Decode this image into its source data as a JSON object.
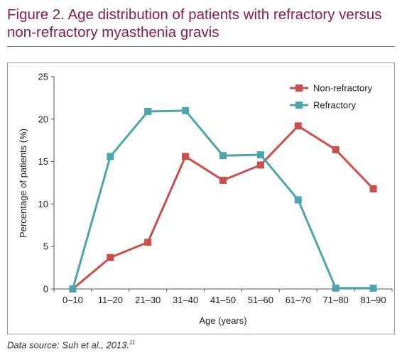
{
  "figure": {
    "title_line1": "Figure 2. Age distribution of patients with refractory versus",
    "title_line2": "non-refractory myasthenia gravis",
    "source_text": "Data source: Suh et al., 2013.",
    "source_ref": "11"
  },
  "chart_data": {
    "type": "line",
    "xlabel": "Age (years)",
    "ylabel": "Percentage of patients (%)",
    "categories": [
      "0–10",
      "11–20",
      "21–30",
      "31–40",
      "41–50",
      "51–60",
      "61–70",
      "71–80",
      "81–90"
    ],
    "ylim": [
      0,
      25
    ],
    "yticks": [
      0,
      5,
      10,
      15,
      20,
      25
    ],
    "grid": false,
    "legend_position": "top-right",
    "series": [
      {
        "name": "Non-refractory",
        "color": "#cc4e4a",
        "marker": "square",
        "values": [
          0,
          3.7,
          5.5,
          15.6,
          12.8,
          14.6,
          19.2,
          16.4,
          11.8
        ]
      },
      {
        "name": "Refractory",
        "color": "#4aa5ad",
        "marker": "square",
        "values": [
          0,
          15.6,
          20.9,
          21.0,
          15.7,
          15.8,
          10.5,
          0.1,
          0.1
        ]
      }
    ]
  }
}
